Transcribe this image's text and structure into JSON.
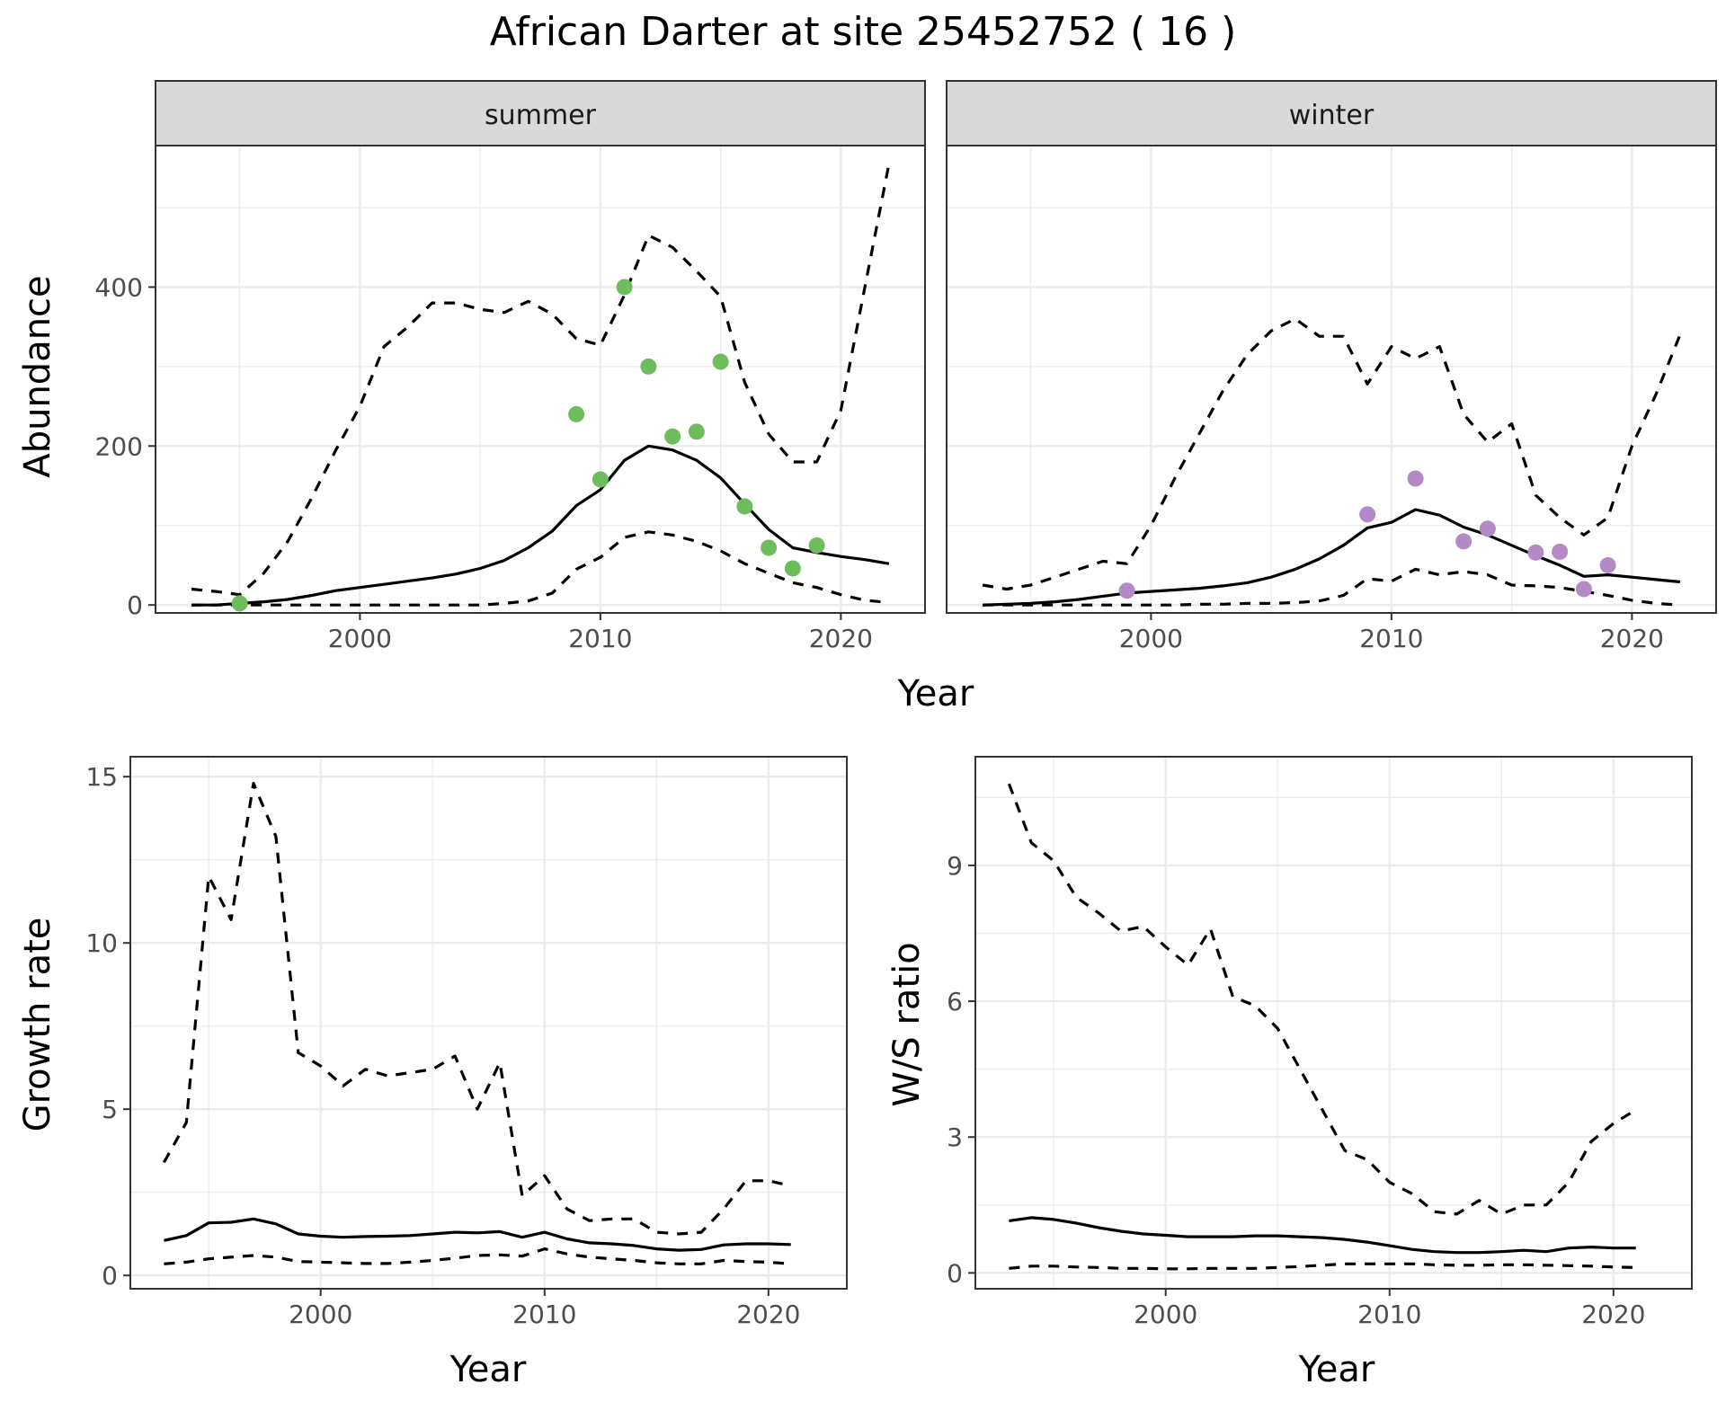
{
  "title": "African Darter at site 25452752 ( 16 )",
  "colors": {
    "summer_points": "#6dbd5c",
    "winter_points": "#b48ac6",
    "line": "#000000",
    "grid": "#ebebeb",
    "strip_fill": "#d9d9d9"
  },
  "chart_data": [
    {
      "type": "line",
      "panel": "summer",
      "strip_label": "summer",
      "xlabel": "Year",
      "ylabel": "Abundance",
      "xlim": [
        1991.5,
        2023.5
      ],
      "ylim": [
        -10,
        578
      ],
      "x_ticks": [
        2000,
        2010,
        2020
      ],
      "y_ticks": [
        0,
        200,
        400
      ],
      "x": [
        1993,
        1994,
        1995,
        1996,
        1997,
        1998,
        1999,
        2000,
        2001,
        2002,
        2003,
        2004,
        2005,
        2006,
        2007,
        2008,
        2009,
        2010,
        2011,
        2012,
        2013,
        2014,
        2015,
        2016,
        2017,
        2018,
        2019,
        2020,
        2021,
        2022
      ],
      "series": [
        {
          "role": "estimate",
          "dash": "solid",
          "values": [
            0,
            0,
            2,
            4,
            7,
            12,
            18,
            22,
            26,
            30,
            34,
            39,
            46,
            56,
            72,
            93,
            125,
            145,
            182,
            200,
            195,
            182,
            160,
            127,
            95,
            72,
            66,
            61,
            57,
            52
          ]
        },
        {
          "role": "upper",
          "dash": "dashed",
          "values": [
            20,
            17,
            13,
            40,
            80,
            135,
            195,
            250,
            325,
            350,
            380,
            380,
            372,
            368,
            382,
            366,
            335,
            327,
            390,
            465,
            450,
            420,
            388,
            280,
            215,
            180,
            180,
            245,
            400,
            555
          ]
        },
        {
          "role": "lower",
          "dash": "dashed",
          "values": [
            0,
            0,
            0,
            0,
            0,
            0,
            0,
            0,
            0,
            0,
            0,
            0,
            0,
            2,
            5,
            15,
            45,
            60,
            85,
            92,
            88,
            80,
            68,
            52,
            40,
            28,
            22,
            13,
            6,
            3
          ]
        }
      ],
      "points": {
        "x": [
          1995,
          2009,
          2010,
          2011,
          2012,
          2013,
          2014,
          2015,
          2016,
          2017,
          2018,
          2019
        ],
        "y": [
          2,
          240,
          158,
          400,
          300,
          212,
          218,
          306,
          124,
          72,
          46,
          75
        ]
      }
    },
    {
      "type": "line",
      "panel": "winter",
      "strip_label": "winter",
      "xlabel": "Year",
      "ylabel": "",
      "xlim": [
        1991.5,
        2023.5
      ],
      "ylim": [
        -10,
        578
      ],
      "x_ticks": [
        2000,
        2010,
        2020
      ],
      "y_ticks": [],
      "x": [
        1993,
        1994,
        1995,
        1996,
        1997,
        1998,
        1999,
        2000,
        2001,
        2002,
        2003,
        2004,
        2005,
        2006,
        2007,
        2008,
        2009,
        2010,
        2011,
        2012,
        2013,
        2014,
        2015,
        2016,
        2017,
        2018,
        2019,
        2020,
        2021,
        2022
      ],
      "series": [
        {
          "role": "estimate",
          "dash": "solid",
          "values": [
            0,
            1,
            2,
            4,
            7,
            11,
            15,
            17,
            19,
            21,
            24,
            28,
            35,
            45,
            58,
            75,
            97,
            104,
            120,
            113,
            98,
            88,
            75,
            62,
            50,
            36,
            38,
            35,
            32,
            29
          ]
        },
        {
          "role": "upper",
          "dash": "dashed",
          "values": [
            25,
            20,
            25,
            35,
            45,
            55,
            52,
            100,
            160,
            215,
            270,
            315,
            345,
            360,
            338,
            338,
            278,
            325,
            310,
            325,
            240,
            205,
            228,
            138,
            110,
            88,
            110,
            200,
            265,
            340
          ]
        },
        {
          "role": "lower",
          "dash": "dashed",
          "values": [
            0,
            0,
            0,
            0,
            0,
            0,
            0,
            0,
            0,
            1,
            1,
            2,
            2,
            3,
            5,
            12,
            33,
            30,
            45,
            38,
            42,
            38,
            25,
            24,
            22,
            17,
            12,
            6,
            2,
            0
          ]
        }
      ],
      "points": {
        "x": [
          1999,
          2009,
          2011,
          2013,
          2014,
          2016,
          2017,
          2018,
          2019
        ],
        "y": [
          18,
          114,
          159,
          80,
          96,
          66,
          67,
          20,
          50
        ]
      }
    },
    {
      "type": "line",
      "panel": "growth",
      "xlabel": "Year",
      "ylabel": "Growth rate",
      "xlim": [
        1991.5,
        2023.5
      ],
      "ylim": [
        -0.4,
        15.6
      ],
      "x_ticks": [
        2000,
        2010,
        2020
      ],
      "y_ticks": [
        0,
        5,
        10,
        15
      ],
      "x": [
        1993,
        1994,
        1995,
        1996,
        1997,
        1998,
        1999,
        2000,
        2001,
        2002,
        2003,
        2004,
        2005,
        2006,
        2007,
        2008,
        2009,
        2010,
        2011,
        2012,
        2013,
        2014,
        2015,
        2016,
        2017,
        2018,
        2019,
        2020,
        2021
      ],
      "series": [
        {
          "role": "estimate",
          "dash": "solid",
          "values": [
            1.05,
            1.2,
            1.58,
            1.6,
            1.7,
            1.55,
            1.25,
            1.18,
            1.15,
            1.17,
            1.18,
            1.2,
            1.25,
            1.3,
            1.28,
            1.32,
            1.15,
            1.3,
            1.1,
            0.98,
            0.95,
            0.9,
            0.8,
            0.76,
            0.78,
            0.92,
            0.95,
            0.95,
            0.93
          ]
        },
        {
          "role": "upper",
          "dash": "dashed",
          "values": [
            3.4,
            4.6,
            12.0,
            10.7,
            14.8,
            13.2,
            6.7,
            6.3,
            5.7,
            6.2,
            6.0,
            6.1,
            6.2,
            6.6,
            5.0,
            6.4,
            2.4,
            3.0,
            2.0,
            1.65,
            1.7,
            1.7,
            1.3,
            1.25,
            1.3,
            2.0,
            2.85,
            2.85,
            2.7
          ]
        },
        {
          "role": "lower",
          "dash": "dashed",
          "values": [
            0.35,
            0.4,
            0.5,
            0.55,
            0.6,
            0.55,
            0.42,
            0.4,
            0.38,
            0.36,
            0.36,
            0.4,
            0.45,
            0.52,
            0.6,
            0.62,
            0.58,
            0.8,
            0.65,
            0.55,
            0.5,
            0.45,
            0.38,
            0.35,
            0.35,
            0.45,
            0.42,
            0.4,
            0.35
          ]
        }
      ]
    },
    {
      "type": "line",
      "panel": "ratio",
      "xlabel": "Year",
      "ylabel": "W/S ratio",
      "xlim": [
        1991.5,
        2023.5
      ],
      "ylim": [
        -0.35,
        11.4
      ],
      "x_ticks": [
        2000,
        2010,
        2020
      ],
      "y_ticks": [
        0,
        3,
        6,
        9
      ],
      "x": [
        1993,
        1994,
        1995,
        1996,
        1997,
        1998,
        1999,
        2000,
        2001,
        2002,
        2003,
        2004,
        2005,
        2006,
        2007,
        2008,
        2009,
        2010,
        2011,
        2012,
        2013,
        2014,
        2015,
        2016,
        2017,
        2018,
        2019,
        2020,
        2021
      ],
      "series": [
        {
          "role": "estimate",
          "dash": "solid",
          "values": [
            1.15,
            1.22,
            1.18,
            1.1,
            1.0,
            0.92,
            0.86,
            0.83,
            0.8,
            0.8,
            0.8,
            0.82,
            0.82,
            0.8,
            0.78,
            0.74,
            0.68,
            0.6,
            0.52,
            0.47,
            0.45,
            0.45,
            0.47,
            0.5,
            0.47,
            0.55,
            0.57,
            0.55,
            0.55
          ]
        },
        {
          "role": "upper",
          "dash": "dashed",
          "values": [
            10.8,
            9.5,
            9.1,
            8.3,
            7.95,
            7.55,
            7.65,
            7.2,
            6.8,
            7.6,
            6.1,
            5.9,
            5.4,
            4.5,
            3.6,
            2.7,
            2.5,
            2.0,
            1.75,
            1.35,
            1.3,
            1.6,
            1.3,
            1.5,
            1.5,
            2.0,
            2.9,
            3.3,
            3.6
          ]
        },
        {
          "role": "lower",
          "dash": "dashed",
          "values": [
            0.1,
            0.15,
            0.15,
            0.13,
            0.12,
            0.1,
            0.1,
            0.09,
            0.09,
            0.1,
            0.1,
            0.1,
            0.12,
            0.14,
            0.17,
            0.2,
            0.2,
            0.2,
            0.2,
            0.18,
            0.17,
            0.17,
            0.18,
            0.18,
            0.17,
            0.16,
            0.15,
            0.13,
            0.12
          ]
        }
      ]
    }
  ]
}
